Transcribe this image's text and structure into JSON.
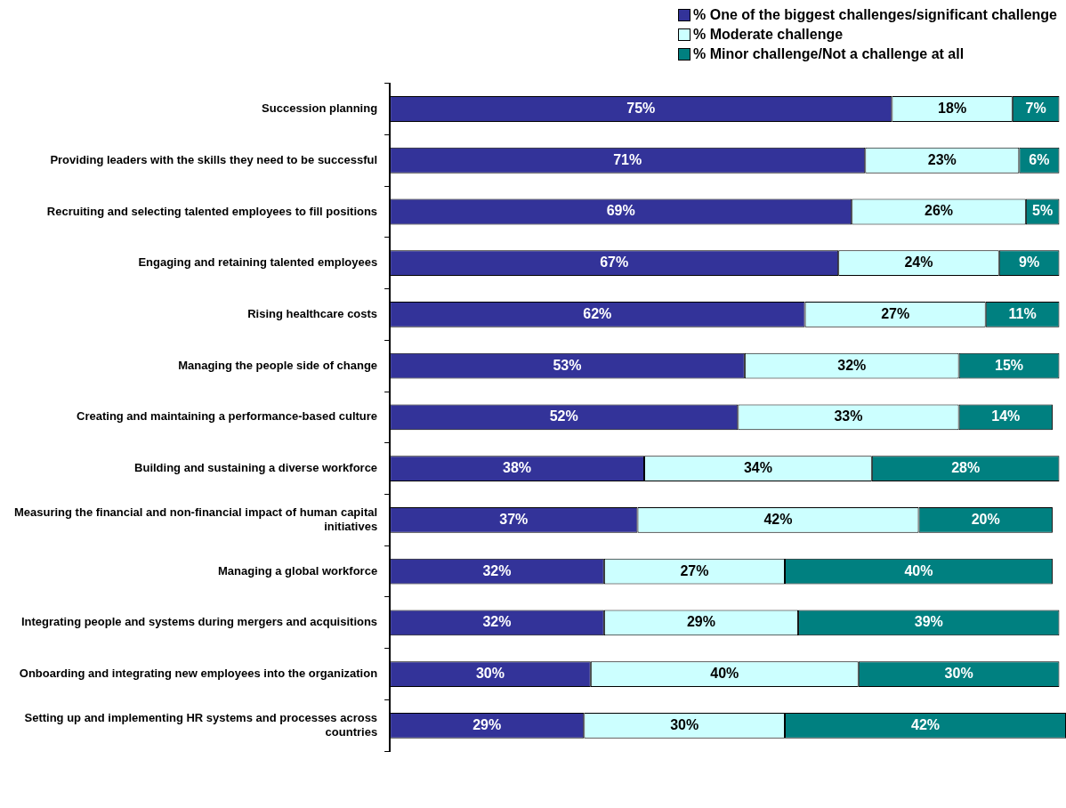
{
  "chart_data": {
    "type": "bar",
    "orientation": "horizontal",
    "stacked": true,
    "legend": "top right",
    "grid": false,
    "categories": [
      "Succession planning",
      "Providing leaders with the skills they need to be successful",
      "Recruiting and selecting talented employees to fill positions",
      "Engaging and retaining talented employees",
      "Rising healthcare costs",
      "Managing the people side of change",
      "Creating and maintaining a performance-based culture",
      "Building and sustaining a diverse workforce",
      "Measuring the financial and non-financial impact of human capital initiatives",
      "Managing a global workforce",
      "Integrating people and systems during mergers and acquisitions",
      "Onboarding and integrating new employees into the organization",
      "Setting up and implementing HR systems and processes across countries"
    ],
    "series": [
      {
        "name": "% One of the biggest challenges/significant challenge",
        "color": "#333399",
        "values": [
          75,
          71,
          69,
          67,
          62,
          53,
          52,
          38,
          37,
          32,
          32,
          30,
          29
        ],
        "value_labels": [
          "75%",
          "71%",
          "69%",
          "67%",
          "62%",
          "53%",
          "52%",
          "38%",
          "37%",
          "32%",
          "32%",
          "30%",
          "29%"
        ]
      },
      {
        "name": "% Moderate challenge",
        "color": "#ccffff",
        "values": [
          18,
          23,
          26,
          24,
          27,
          32,
          33,
          34,
          42,
          27,
          29,
          40,
          30
        ],
        "value_labels": [
          "18%",
          "23%",
          "26%",
          "24%",
          "27%",
          "32%",
          "33%",
          "34%",
          "42%",
          "27%",
          "29%",
          "40%",
          "30%"
        ]
      },
      {
        "name": "% Minor challenge/Not a challenge at all",
        "color": "#008080",
        "values": [
          7,
          6,
          5,
          9,
          11,
          15,
          14,
          28,
          20,
          40,
          39,
          30,
          42
        ],
        "value_labels": [
          "7%",
          "6%",
          "5%",
          "9%",
          "11%",
          "15%",
          "14%",
          "28%",
          "20%",
          "40%",
          "39%",
          "30%",
          "42%"
        ]
      }
    ]
  }
}
